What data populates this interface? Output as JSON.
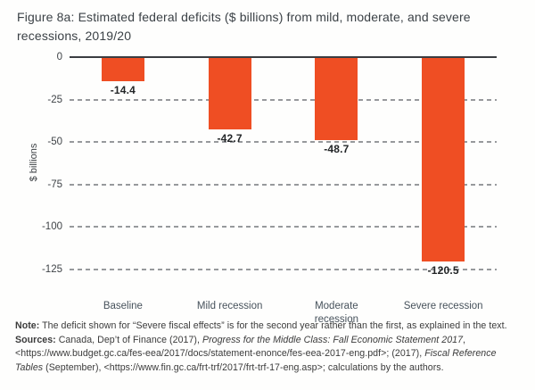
{
  "figure_title": "Figure 8a: Estimated federal deficits ($ billions) from mild, moderate, and severe recessions, 2019/20",
  "chart_data": {
    "type": "bar",
    "title": "Figure 8a: Estimated federal deficits ($ billions) from mild, moderate, and severe recessions, 2019/20",
    "categories": [
      "Baseline",
      "Mild recession",
      "Moderate recession",
      "Severe recession"
    ],
    "values": [
      -14.4,
      -42.7,
      -48.7,
      -120.5
    ],
    "value_labels": [
      "-14.4",
      "-42.7",
      "-48.7",
      "-120.5"
    ],
    "xlabel": "",
    "ylabel": "$ billions",
    "ylim": [
      -125,
      0
    ],
    "yticks": [
      0,
      -25,
      -50,
      -75,
      -100,
      -125
    ],
    "ytick_labels": [
      "0",
      "-25",
      "-50",
      "-75",
      "-100",
      "-125"
    ],
    "grid": "horizontal-dashed",
    "legend_position": "none",
    "bar_color": "#EF4E23",
    "zero_line_color": "#3A3D41",
    "gridline_color": "#97999C"
  },
  "notes": {
    "note_label": "Note:",
    "note_text": " The deficit shown for “Severe fiscal effects” is for the second year rather than the first, as explained in the text.",
    "sources_label": "Sources:",
    "sources_part1": " Canada, Dep’t of Finance (2017), ",
    "sources_italic1": "Progress for the Middle Class: Fall Economic Statement 2017",
    "sources_part2": ", <https://www.budget.gc.ca/fes-eea/2017/docs/statement-enonce/fes-eea-2017-eng.pdf>; (2017), ",
    "sources_italic2": "Fiscal Reference Tables",
    "sources_part3": " (September), <https://www.fin.gc.ca/frt-trf/2017/frt-trf-17-eng.asp>; calculations by the authors."
  }
}
